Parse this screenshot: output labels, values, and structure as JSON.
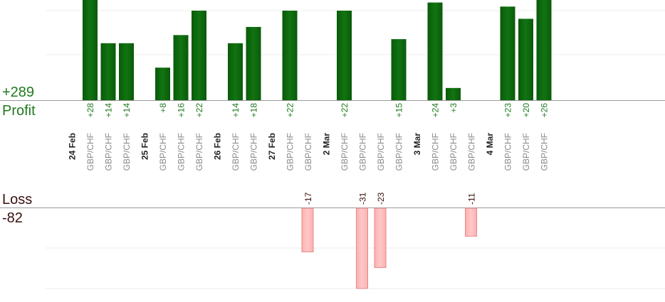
{
  "summary": {
    "profit_total": "+289",
    "profit_label": "Profit",
    "loss_label": "Loss",
    "loss_total": "-82"
  },
  "colors": {
    "profit_text": "#1f7a1f",
    "profit_bar": "#0b5c0b",
    "loss_text": "#3a1010",
    "loss_bar": "#fdb8b8",
    "loss_bar_border": "#e88888"
  },
  "chart_data": {
    "type": "bar",
    "ylim_profit": [
      0,
      22
    ],
    "ylim_loss": [
      -31,
      0
    ],
    "grid": true,
    "groups": [
      {
        "date": "24 Feb",
        "trades": [
          {
            "pair": "GBP/CHF",
            "value": 28,
            "label": "+28"
          },
          {
            "pair": "GBP/CHF",
            "value": 14,
            "label": "+14"
          },
          {
            "pair": "GBP/CHF",
            "value": 14,
            "label": "+14"
          }
        ]
      },
      {
        "date": "25 Feb",
        "trades": [
          {
            "pair": "GBP/CHF",
            "value": 8,
            "label": "+8"
          },
          {
            "pair": "GBP/CHF",
            "value": 16,
            "label": "+16"
          },
          {
            "pair": "GBP/CHF",
            "value": 22,
            "label": "+22"
          }
        ]
      },
      {
        "date": "26 Feb",
        "trades": [
          {
            "pair": "GBP/CHF",
            "value": 14,
            "label": "+14"
          },
          {
            "pair": "GBP/CHF",
            "value": 18,
            "label": "+18"
          }
        ]
      },
      {
        "date": "27 Feb",
        "trades": [
          {
            "pair": "GBP/CHF",
            "value": 22,
            "label": "+22"
          },
          {
            "pair": "GBP/CHF",
            "value": -17,
            "label": "-17"
          }
        ]
      },
      {
        "date": "2 Mar",
        "trades": [
          {
            "pair": "GBP/CHF",
            "value": 22,
            "label": "+22"
          },
          {
            "pair": "GBP/CHF",
            "value": -31,
            "label": "-31"
          },
          {
            "pair": "GBP/CHF",
            "value": -23,
            "label": "-23"
          },
          {
            "pair": "GBP/CHF",
            "value": 15,
            "label": "+15"
          }
        ]
      },
      {
        "date": "3 Mar",
        "trades": [
          {
            "pair": "GBP/CHF",
            "value": 24,
            "label": "+24"
          },
          {
            "pair": "GBP/CHF",
            "value": 3,
            "label": "+3"
          },
          {
            "pair": "GBP/CHF",
            "value": -11,
            "label": "-11"
          }
        ]
      },
      {
        "date": "4 Mar",
        "trades": [
          {
            "pair": "GBP/CHF",
            "value": 23,
            "label": "+23"
          },
          {
            "pair": "GBP/CHF",
            "value": 20,
            "label": "+20"
          },
          {
            "pair": "GBP/CHF",
            "value": 26,
            "label": "+26"
          }
        ]
      }
    ]
  }
}
